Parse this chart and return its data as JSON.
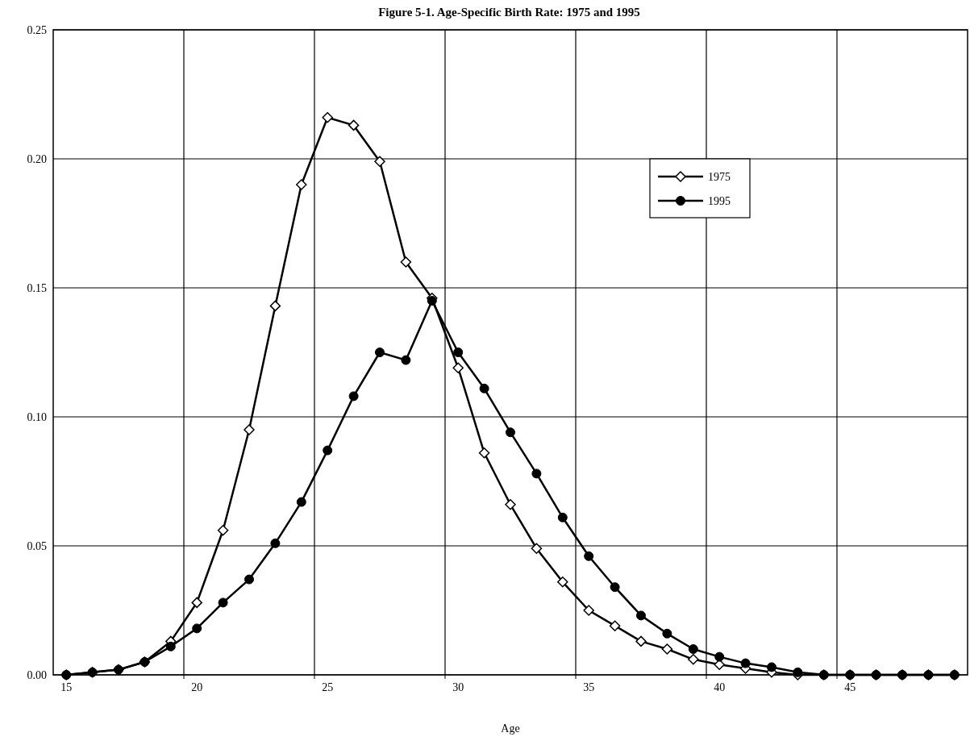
{
  "chart_data": {
    "type": "line",
    "title": "Figure 5-1. Age-Specific Birth Rate: 1975 and 1995",
    "xlabel": "Age",
    "x": [
      15,
      16,
      17,
      18,
      19,
      20,
      21,
      22,
      23,
      24,
      25,
      26,
      27,
      28,
      29,
      30,
      31,
      32,
      33,
      34,
      35,
      36,
      37,
      38,
      39,
      40,
      41,
      42,
      43,
      44,
      45,
      46,
      47,
      48,
      49
    ],
    "series": [
      {
        "name": "1975",
        "color": "#000000",
        "marker": "diamond",
        "values": [
          0,
          0.001,
          0.002,
          0.005,
          0.013,
          0.028,
          0.056,
          0.095,
          0.143,
          0.19,
          0.216,
          0.213,
          0.199,
          0.16,
          0.146,
          0.119,
          0.086,
          0.066,
          0.049,
          0.036,
          0.025,
          0.019,
          0.013,
          0.01,
          0.006,
          0.004,
          0.0025,
          0.001,
          0,
          0,
          0,
          0,
          0,
          0,
          0
        ]
      },
      {
        "name": "1995",
        "color": "#000000",
        "marker": "circle",
        "values": [
          0,
          0.001,
          0.002,
          0.005,
          0.011,
          0.018,
          0.028,
          0.037,
          0.051,
          0.067,
          0.087,
          0.108,
          0.125,
          0.122,
          0.145,
          0.125,
          0.111,
          0.094,
          0.078,
          0.061,
          0.046,
          0.034,
          0.023,
          0.016,
          0.01,
          0.007,
          0.0045,
          0.003,
          0.001,
          0,
          0,
          0,
          0,
          0,
          0
        ]
      }
    ],
    "xlim": [
      14.5,
      49.5
    ],
    "xticks": [
      15,
      20,
      25,
      30,
      35,
      40,
      45,
      {
        "value": 19.5,
        "label": null
      },
      {
        "value": 24.5,
        "label": null
      },
      {
        "value": 29.5,
        "label": null
      },
      {
        "value": 34.5,
        "label": null
      },
      {
        "value": 39.5,
        "label": null
      },
      {
        "value": 44.5,
        "label": null
      }
    ],
    "ylim": [
      0,
      0.25
    ],
    "yticks": [
      {
        "value": 0,
        "label": "0.00"
      },
      {
        "value": 0.05,
        "label": "0.05"
      },
      {
        "value": 0.1,
        "label": "0.10"
      },
      {
        "value": 0.15,
        "label": "0.15"
      },
      {
        "value": 0.2,
        "label": "0.20"
      },
      {
        "value": 0.25,
        "label": "0.25"
      }
    ],
    "grid": true,
    "legend": "top right",
    "line_style": "solid"
  }
}
